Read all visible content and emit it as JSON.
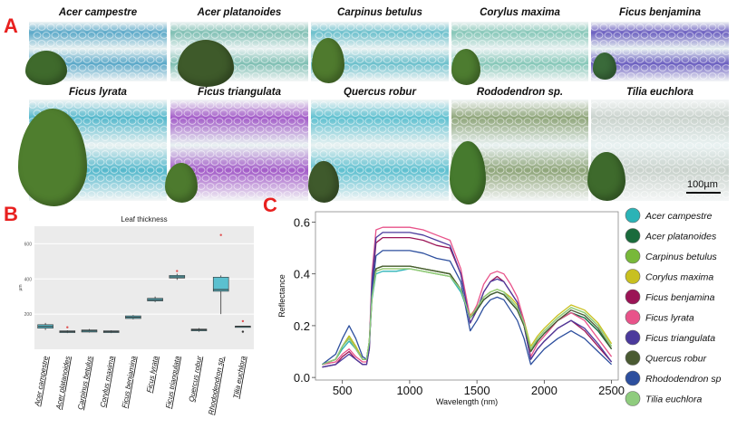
{
  "panels": {
    "a": "A",
    "b": "B",
    "c": "C"
  },
  "micrographs": [
    {
      "title": "Acer campestre",
      "tint": "#5aa8c8"
    },
    {
      "title": "Acer platanoides",
      "tint": "#7fbfb3"
    },
    {
      "title": "Carpinus betulus",
      "tint": "#6cc0cc"
    },
    {
      "title": "Corylus maxima",
      "tint": "#86c7b8"
    },
    {
      "title": "Ficus benjamina",
      "tint": "#6b5fc0"
    },
    {
      "title": "Ficus lyrata",
      "tint": "#55b8cc"
    },
    {
      "title": "Ficus triangulata",
      "tint": "#a35cc8"
    },
    {
      "title": "Quercus robur",
      "tint": "#5fc0d0"
    },
    {
      "title": "Rododendron sp.",
      "tint": "#8fa57a"
    },
    {
      "title": "Tilia euchlora",
      "tint": "#c9d2cc"
    }
  ],
  "scale_bar_label": "100µm",
  "chart_data": [
    {
      "type": "box",
      "title": "Leaf thickness",
      "ylabel": "µm",
      "ylim": [
        0,
        700
      ],
      "yticks": [
        200,
        400,
        600
      ],
      "categories": [
        "Acer campestre",
        "Acer platanoides",
        "Carpinus betulus",
        "Corylus maxima",
        "Ficus benjamina",
        "Ficus lyrata",
        "Ficus triangulata",
        "Quercus robur",
        "Rhododendron sp.",
        "Tilia euchlora"
      ],
      "boxes": [
        {
          "q1": 120,
          "median": 130,
          "q3": 140,
          "min": 110,
          "max": 150,
          "outliers": []
        },
        {
          "q1": 95,
          "median": 100,
          "q3": 105,
          "min": 92,
          "max": 108,
          "outliers": [
            125
          ]
        },
        {
          "q1": 98,
          "median": 104,
          "q3": 110,
          "min": 95,
          "max": 115,
          "outliers": []
        },
        {
          "q1": 95,
          "median": 100,
          "q3": 105,
          "min": 92,
          "max": 108,
          "outliers": []
        },
        {
          "q1": 175,
          "median": 182,
          "q3": 190,
          "min": 170,
          "max": 195,
          "outliers": []
        },
        {
          "q1": 275,
          "median": 282,
          "q3": 290,
          "min": 268,
          "max": 300,
          "outliers": []
        },
        {
          "q1": 405,
          "median": 412,
          "q3": 420,
          "min": 395,
          "max": 430,
          "outliers": [
            445
          ]
        },
        {
          "q1": 105,
          "median": 110,
          "q3": 115,
          "min": 100,
          "max": 120,
          "outliers": []
        },
        {
          "q1": 330,
          "median": 340,
          "q3": 410,
          "min": 200,
          "max": 420,
          "outliers": [
            650
          ]
        },
        {
          "q1": 128,
          "median": 130,
          "q3": 132,
          "min": 126,
          "max": 134,
          "outliers": [
            100,
            160
          ]
        }
      ],
      "box_color": "#5bc0cf",
      "median_color": "#333333"
    },
    {
      "type": "line",
      "xlabel": "Wavelength (nm)",
      "ylabel": "Reflectance",
      "xlim": [
        300,
        2550
      ],
      "ylim": [
        -0.01,
        0.64
      ],
      "xticks": [
        500,
        1000,
        1500,
        2000,
        2500
      ],
      "yticks": [
        0.0,
        0.2,
        0.4,
        0.6
      ],
      "legend_position": "right",
      "x": [
        350,
        450,
        500,
        550,
        600,
        650,
        680,
        700,
        720,
        750,
        800,
        900,
        1000,
        1100,
        1200,
        1300,
        1380,
        1450,
        1500,
        1550,
        1600,
        1650,
        1700,
        1750,
        1800,
        1850,
        1900,
        1950,
        2000,
        2100,
        2200,
        2300,
        2400,
        2500
      ],
      "series": [
        {
          "name": "Acer campestre",
          "color": "#2bb3b6",
          "values": [
            0.05,
            0.07,
            0.11,
            0.14,
            0.11,
            0.07,
            0.07,
            0.13,
            0.3,
            0.4,
            0.41,
            0.41,
            0.42,
            0.41,
            0.4,
            0.39,
            0.33,
            0.23,
            0.26,
            0.3,
            0.32,
            0.33,
            0.32,
            0.29,
            0.26,
            0.2,
            0.1,
            0.14,
            0.17,
            0.22,
            0.25,
            0.23,
            0.18,
            0.11
          ]
        },
        {
          "name": "Acer platanoides",
          "color": "#1a6b3c",
          "values": [
            0.05,
            0.07,
            0.12,
            0.16,
            0.12,
            0.07,
            0.07,
            0.14,
            0.32,
            0.42,
            0.43,
            0.43,
            0.43,
            0.42,
            0.41,
            0.4,
            0.34,
            0.23,
            0.26,
            0.3,
            0.32,
            0.33,
            0.32,
            0.29,
            0.26,
            0.2,
            0.1,
            0.14,
            0.17,
            0.22,
            0.25,
            0.23,
            0.18,
            0.11
          ]
        },
        {
          "name": "Carpinus betulus",
          "color": "#78b83a",
          "values": [
            0.05,
            0.07,
            0.12,
            0.16,
            0.12,
            0.07,
            0.07,
            0.14,
            0.32,
            0.42,
            0.43,
            0.43,
            0.43,
            0.42,
            0.41,
            0.4,
            0.34,
            0.23,
            0.27,
            0.31,
            0.33,
            0.34,
            0.33,
            0.3,
            0.27,
            0.21,
            0.11,
            0.15,
            0.18,
            0.23,
            0.27,
            0.25,
            0.2,
            0.12
          ]
        },
        {
          "name": "Corylus maxima",
          "color": "#c8c020",
          "values": [
            0.05,
            0.07,
            0.12,
            0.16,
            0.12,
            0.07,
            0.07,
            0.14,
            0.31,
            0.41,
            0.42,
            0.42,
            0.42,
            0.41,
            0.4,
            0.39,
            0.34,
            0.24,
            0.27,
            0.31,
            0.33,
            0.34,
            0.33,
            0.31,
            0.28,
            0.22,
            0.12,
            0.16,
            0.19,
            0.24,
            0.28,
            0.26,
            0.21,
            0.13
          ]
        },
        {
          "name": "Ficus benjamina",
          "color": "#9b1456",
          "values": [
            0.04,
            0.05,
            0.08,
            0.1,
            0.07,
            0.05,
            0.05,
            0.11,
            0.35,
            0.52,
            0.54,
            0.54,
            0.54,
            0.53,
            0.51,
            0.5,
            0.4,
            0.21,
            0.26,
            0.33,
            0.37,
            0.39,
            0.37,
            0.33,
            0.29,
            0.2,
            0.07,
            0.11,
            0.14,
            0.19,
            0.22,
            0.18,
            0.12,
            0.06
          ]
        },
        {
          "name": "Ficus lyrata",
          "color": "#e8538a",
          "values": [
            0.05,
            0.06,
            0.09,
            0.11,
            0.08,
            0.06,
            0.06,
            0.13,
            0.4,
            0.57,
            0.58,
            0.58,
            0.58,
            0.57,
            0.55,
            0.53,
            0.42,
            0.23,
            0.28,
            0.36,
            0.4,
            0.41,
            0.4,
            0.36,
            0.31,
            0.22,
            0.08,
            0.13,
            0.16,
            0.22,
            0.25,
            0.22,
            0.15,
            0.08
          ]
        },
        {
          "name": "Ficus triangulata",
          "color": "#4b3a9c",
          "values": [
            0.04,
            0.05,
            0.07,
            0.09,
            0.07,
            0.05,
            0.05,
            0.11,
            0.37,
            0.54,
            0.56,
            0.56,
            0.56,
            0.55,
            0.53,
            0.51,
            0.4,
            0.21,
            0.26,
            0.33,
            0.37,
            0.38,
            0.37,
            0.33,
            0.29,
            0.2,
            0.07,
            0.11,
            0.14,
            0.19,
            0.22,
            0.19,
            0.13,
            0.06
          ]
        },
        {
          "name": "Quercus robur",
          "color": "#4a5a32",
          "values": [
            0.05,
            0.07,
            0.12,
            0.15,
            0.11,
            0.07,
            0.07,
            0.13,
            0.31,
            0.42,
            0.43,
            0.43,
            0.43,
            0.42,
            0.41,
            0.4,
            0.34,
            0.23,
            0.26,
            0.3,
            0.32,
            0.33,
            0.32,
            0.29,
            0.26,
            0.2,
            0.1,
            0.14,
            0.17,
            0.22,
            0.26,
            0.24,
            0.19,
            0.11
          ]
        },
        {
          "name": "Rhododendron sp",
          "color": "#2d4f9e",
          "values": [
            0.05,
            0.09,
            0.15,
            0.2,
            0.15,
            0.08,
            0.07,
            0.13,
            0.33,
            0.47,
            0.49,
            0.49,
            0.49,
            0.48,
            0.46,
            0.45,
            0.37,
            0.18,
            0.22,
            0.27,
            0.3,
            0.31,
            0.3,
            0.26,
            0.22,
            0.15,
            0.05,
            0.08,
            0.11,
            0.15,
            0.18,
            0.15,
            0.1,
            0.05
          ]
        },
        {
          "name": "Tilia euchlora",
          "color": "#8fcc7e",
          "values": [
            0.05,
            0.07,
            0.12,
            0.15,
            0.11,
            0.07,
            0.07,
            0.14,
            0.31,
            0.41,
            0.42,
            0.42,
            0.42,
            0.41,
            0.4,
            0.39,
            0.34,
            0.23,
            0.27,
            0.31,
            0.33,
            0.34,
            0.33,
            0.3,
            0.27,
            0.21,
            0.11,
            0.15,
            0.18,
            0.23,
            0.27,
            0.25,
            0.2,
            0.12
          ]
        }
      ]
    }
  ]
}
